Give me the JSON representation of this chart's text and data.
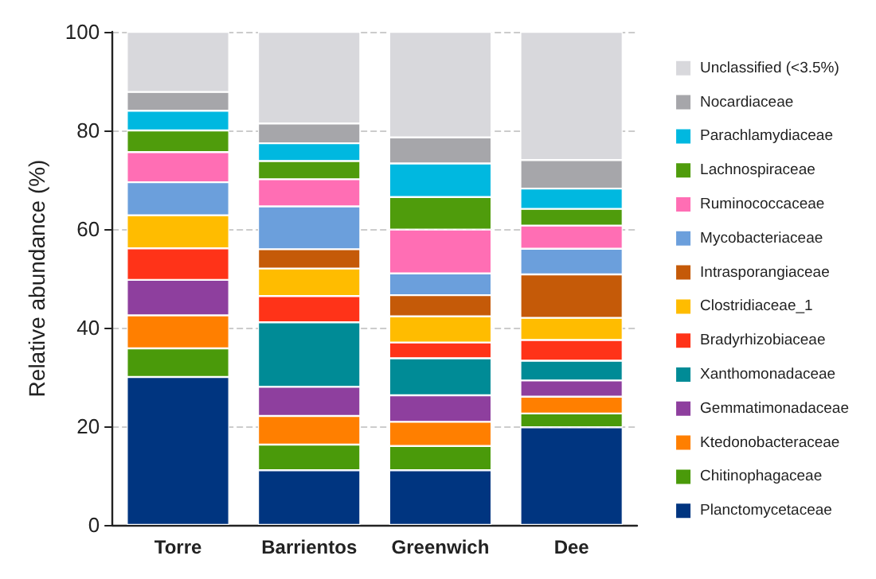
{
  "chart_data": {
    "type": "bar",
    "stacked": true,
    "ylabel": "Relative abundance (%)",
    "categories": [
      "Torre",
      "Barrientos",
      "Greenwich",
      "Dee"
    ],
    "ylim": [
      0,
      100
    ],
    "yticks": [
      0,
      20,
      40,
      60,
      80,
      100
    ],
    "grid": "y",
    "legend": "right",
    "series": [
      {
        "name": "Planctomycetaceae",
        "color": "#003580",
        "values": [
          30.0,
          11.1,
          11.1,
          19.8
        ]
      },
      {
        "name": "Chitinophagaceae",
        "color": "#4a9a0a",
        "values": [
          5.8,
          5.2,
          4.9,
          2.8
        ]
      },
      {
        "name": "Ktedonobacteraceae",
        "color": "#ff7f00",
        "values": [
          6.7,
          5.8,
          4.9,
          3.4
        ]
      },
      {
        "name": "Gemmatimonadaceae",
        "color": "#8e3f9e",
        "values": [
          7.2,
          5.9,
          5.4,
          3.3
        ]
      },
      {
        "name": "Xanthomonadaceae",
        "color": "#008b96",
        "values": [
          0,
          13.1,
          7.5,
          4.0
        ]
      },
      {
        "name": "Bradyrhizobiaceae",
        "color": "#ff3318",
        "values": [
          6.4,
          5.3,
          3.2,
          4.2
        ]
      },
      {
        "name": "Clostridiaceae_1",
        "color": "#ffbc00",
        "values": [
          6.7,
          5.6,
          5.3,
          4.5
        ]
      },
      {
        "name": "Intrasporangiaceae",
        "color": "#c55a08",
        "values": [
          0,
          3.9,
          4.3,
          8.8
        ]
      },
      {
        "name": "Mycobacteriaceae",
        "color": "#6b9fdc",
        "values": [
          6.7,
          8.7,
          4.4,
          5.2
        ]
      },
      {
        "name": "Ruminococcaceae",
        "color": "#ff6eb4",
        "values": [
          6.1,
          5.5,
          8.9,
          4.7
        ]
      },
      {
        "name": "Lachnospiraceae",
        "color": "#4f9c0c",
        "values": [
          4.4,
          3.7,
          6.6,
          3.4
        ]
      },
      {
        "name": "Parachlamydiaceae",
        "color": "#00b8e0",
        "values": [
          4.0,
          3.6,
          6.8,
          4.1
        ]
      },
      {
        "name": "Nocardiaceae",
        "color": "#a6a6aa",
        "values": [
          3.8,
          4.0,
          5.3,
          5.8
        ]
      },
      {
        "name": "Unclassified (<3.5%)",
        "color": "#d8d8dc",
        "values": [
          12.2,
          18.6,
          21.4,
          26.0
        ]
      }
    ]
  }
}
